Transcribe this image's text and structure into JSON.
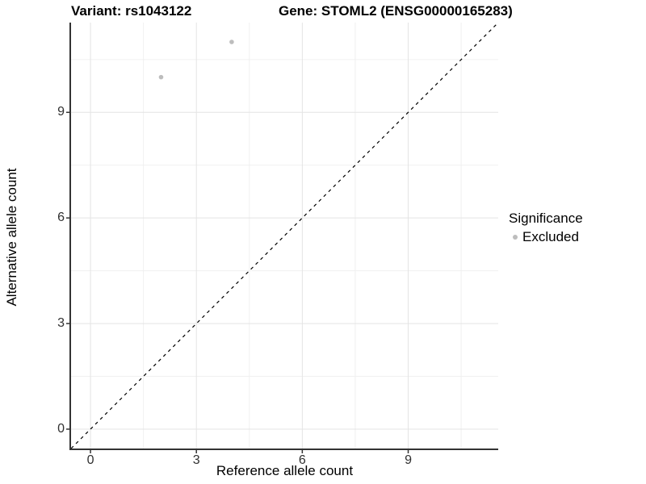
{
  "titles": {
    "variant": "Variant: rs1043122",
    "gene": "Gene: STOML2 (ENSG00000165283)"
  },
  "legend": {
    "title": "Significance",
    "items": [
      {
        "label": "Excluded",
        "color": "#bdbdbd"
      }
    ]
  },
  "colors": {
    "background": "#ffffff",
    "panel_background": "#ffffff",
    "grid_major": "#e4e4e4",
    "grid_minor": "#f0f0f0",
    "axis_line": "#333333",
    "tick_text": "#303030",
    "title_text": "#000000",
    "point": "#bdbdbd",
    "reference_line": "#000000"
  },
  "chart_data": {
    "type": "scatter",
    "title": "Variant: rs1043122    Gene: STOML2 (ENSG00000165283)",
    "xlabel": "Reference allele count",
    "ylabel": "Alternative allele count",
    "xlim": [
      -0.55,
      11.55
    ],
    "ylim": [
      -0.55,
      11.55
    ],
    "x_ticks": [
      0,
      3,
      6,
      9
    ],
    "y_ticks": [
      0,
      3,
      6,
      9
    ],
    "x_minor_ticks": [
      1.5,
      4.5,
      7.5,
      10.5
    ],
    "y_minor_ticks": [
      1.5,
      4.5,
      7.5,
      10.5
    ],
    "grid": true,
    "legend_position": "right",
    "series": [
      {
        "name": "Excluded",
        "color": "#bdbdbd",
        "points": [
          {
            "x": 2,
            "y": 10
          },
          {
            "x": 4,
            "y": 11
          }
        ]
      }
    ],
    "reference_line": {
      "type": "identity",
      "slope": 1,
      "intercept": 0,
      "style": "dashed",
      "color": "#000000"
    }
  }
}
